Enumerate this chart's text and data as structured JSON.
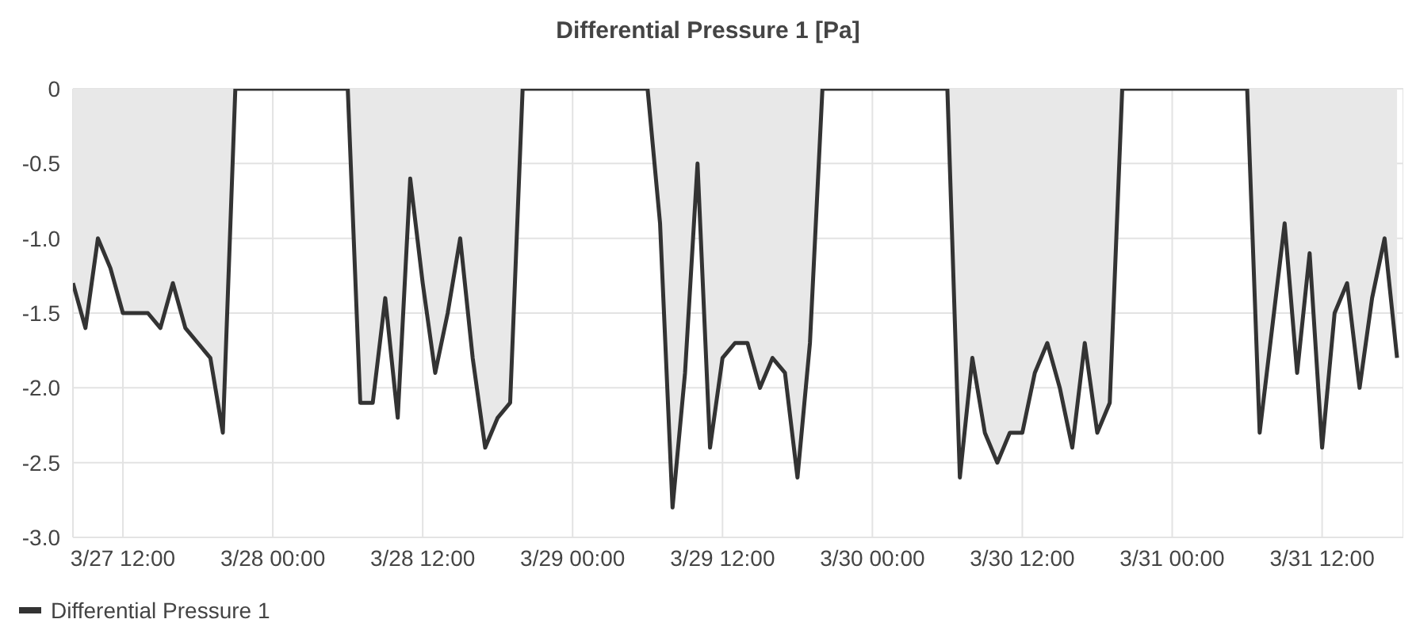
{
  "chart_data": {
    "type": "area",
    "title": "Differential Pressure 1 [Pa]",
    "xlim": [
      "--03-27T08:00",
      "--03-31T18:30"
    ],
    "xticks": [
      {
        "value": "--03-27T12:00",
        "label": "3/27 12:00"
      },
      {
        "value": "--03-28T00:00",
        "label": "3/28 00:00"
      },
      {
        "value": "--03-28T12:00",
        "label": "3/28 12:00"
      },
      {
        "value": "--03-29T00:00",
        "label": "3/29 00:00"
      },
      {
        "value": "--03-29T12:00",
        "label": "3/29 12:00"
      },
      {
        "value": "--03-30T00:00",
        "label": "3/30 00:00"
      },
      {
        "value": "--03-30T12:00",
        "label": "3/30 12:00"
      },
      {
        "value": "--03-31T00:00",
        "label": "3/31 00:00"
      },
      {
        "value": "--03-31T12:00",
        "label": "3/31 12:00"
      }
    ],
    "ylim": [
      -3,
      0
    ],
    "yticks": [
      0,
      -0.5,
      {
        "value": -1,
        "label": "-1.0"
      },
      -1.5,
      {
        "value": -2,
        "label": "-2.0"
      },
      -2.5,
      {
        "value": -3,
        "label": "-3.0"
      }
    ],
    "grid": true,
    "legend": "bottom left",
    "series": [
      {
        "name": "Differential Pressure 1",
        "color": "#333333",
        "x": [
          "--03-27T08:00",
          "--03-27T09:00",
          "--03-27T10:00",
          "--03-27T11:00",
          "--03-27T12:00",
          "--03-27T13:00",
          "--03-27T14:00",
          "--03-27T15:00",
          "--03-27T16:00",
          "--03-27T17:00",
          "--03-27T18:00",
          "--03-27T19:00",
          "--03-27T20:00",
          "--03-27T21:00",
          "--03-28T06:00",
          "--03-28T07:00",
          "--03-28T08:00",
          "--03-28T09:00",
          "--03-28T10:00",
          "--03-28T11:00",
          "--03-28T12:00",
          "--03-28T13:00",
          "--03-28T14:00",
          "--03-28T15:00",
          "--03-28T16:00",
          "--03-28T17:00",
          "--03-28T18:00",
          "--03-28T19:00",
          "--03-28T20:00",
          "--03-29T06:00",
          "--03-29T07:00",
          "--03-29T08:00",
          "--03-29T09:00",
          "--03-29T10:00",
          "--03-29T11:00",
          "--03-29T12:00",
          "--03-29T13:00",
          "--03-29T14:00",
          "--03-29T15:00",
          "--03-29T16:00",
          "--03-29T17:00",
          "--03-29T18:00",
          "--03-29T19:00",
          "--03-29T20:00",
          "--03-30T06:00",
          "--03-30T07:00",
          "--03-30T08:00",
          "--03-30T09:00",
          "--03-30T10:00",
          "--03-30T11:00",
          "--03-30T12:00",
          "--03-30T13:00",
          "--03-30T14:00",
          "--03-30T15:00",
          "--03-30T16:00",
          "--03-30T17:00",
          "--03-30T18:00",
          "--03-30T19:00",
          "--03-30T20:00",
          "--03-31T06:00",
          "--03-31T07:00",
          "--03-31T08:00",
          "--03-31T09:00",
          "--03-31T10:00",
          "--03-31T11:00",
          "--03-31T12:00",
          "--03-31T13:00",
          "--03-31T14:00",
          "--03-31T15:00",
          "--03-31T16:00",
          "--03-31T17:00",
          "--03-31T18:00"
        ],
        "values": [
          -1.3,
          -1.6,
          -1.0,
          -1.2,
          -1.5,
          -1.5,
          -1.5,
          -1.6,
          -1.3,
          -1.6,
          -1.7,
          -1.8,
          -2.3,
          0,
          0,
          -2.1,
          -2.1,
          -1.4,
          -2.2,
          -0.6,
          -1.3,
          -1.9,
          -1.5,
          -1.0,
          -1.8,
          -2.4,
          -2.2,
          -2.1,
          0,
          0,
          -0.9,
          -2.8,
          -1.9,
          -0.5,
          -2.4,
          -1.8,
          -1.7,
          -1.7,
          -2.0,
          -1.8,
          -1.9,
          -2.6,
          -1.7,
          0,
          0,
          -2.6,
          -1.8,
          -2.3,
          -2.5,
          -2.3,
          -2.3,
          -1.9,
          -1.7,
          -2.0,
          -2.4,
          -1.7,
          -2.3,
          -2.1,
          0,
          0,
          -2.3,
          -1.6,
          -0.9,
          -1.9,
          -1.1,
          -2.4,
          -1.5,
          -1.3,
          -2.0,
          -1.4,
          -1.0,
          -1.8
        ]
      }
    ]
  }
}
